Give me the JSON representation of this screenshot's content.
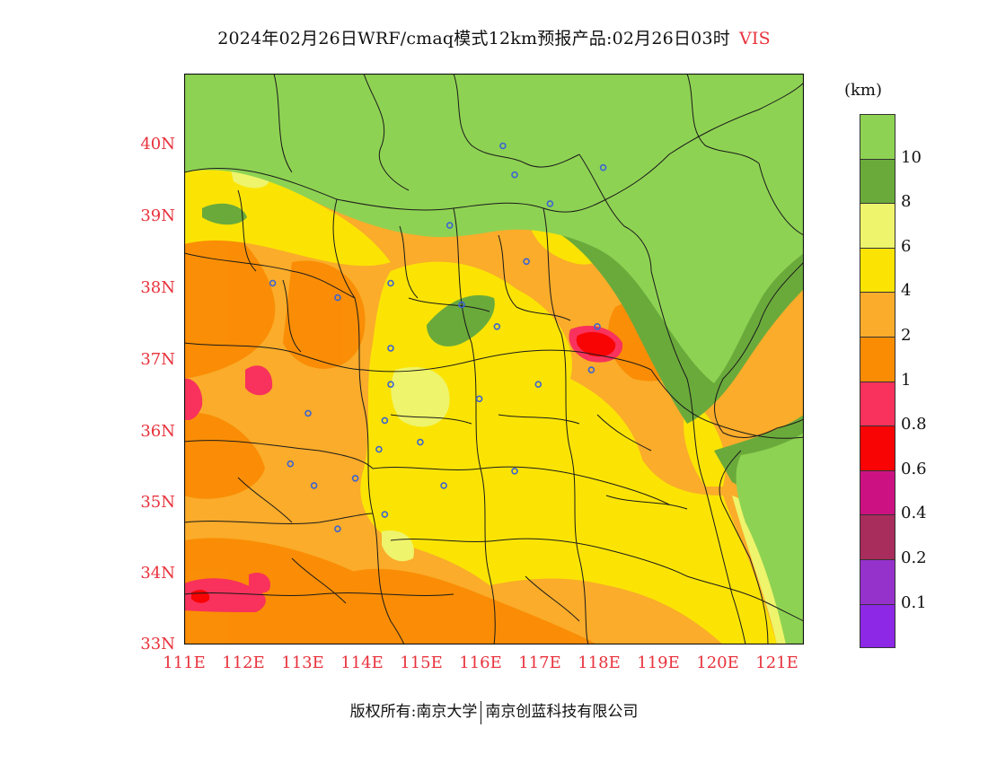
{
  "header": {
    "title": "2024年02月26日WRF/cmaq模式12km预报产品:02月26日03时",
    "variable": "VIS"
  },
  "map": {
    "lat_labels": [
      "40N",
      "39N",
      "38N",
      "37N",
      "36N",
      "35N",
      "34N",
      "33N"
    ],
    "lon_labels": [
      "111E",
      "112E",
      "113E",
      "114E",
      "115E",
      "116E",
      "117E",
      "118E",
      "119E",
      "120E",
      "121E"
    ],
    "lon_range": [
      111,
      121.5
    ],
    "lat_range": [
      33,
      40.9
    ],
    "colors": {
      "lt10": "#8ed253",
      "8_10": "#6aaa3b",
      "6_8": "#eef46b",
      "4_6": "#fbe404",
      "2_4": "#faac2a",
      "1_2": "#fa8c04",
      "0.8_1": "#f8325c",
      "0.6_0.8": "#f80404",
      "station": "#3c64d2",
      "border": "#1a1a1a"
    },
    "stations": [
      [
        116.4,
        39.9
      ],
      [
        116.6,
        39.5
      ],
      [
        118.1,
        39.6
      ],
      [
        117.2,
        39.1
      ],
      [
        115.5,
        38.8
      ],
      [
        116.8,
        38.3
      ],
      [
        114.5,
        38.0
      ],
      [
        112.5,
        38.0
      ],
      [
        113.6,
        37.8
      ],
      [
        115.7,
        37.7
      ],
      [
        116.3,
        37.4
      ],
      [
        118.0,
        37.4
      ],
      [
        114.5,
        37.1
      ],
      [
        117.0,
        36.6
      ],
      [
        117.9,
        36.8
      ],
      [
        114.5,
        36.6
      ],
      [
        116.0,
        36.4
      ],
      [
        113.1,
        36.2
      ],
      [
        114.4,
        36.1
      ],
      [
        115.0,
        35.8
      ],
      [
        114.3,
        35.7
      ],
      [
        112.8,
        35.5
      ],
      [
        116.6,
        35.4
      ],
      [
        113.9,
        35.3
      ],
      [
        113.2,
        35.2
      ],
      [
        115.4,
        35.2
      ],
      [
        114.4,
        34.8
      ],
      [
        113.6,
        34.6
      ]
    ]
  },
  "colorbar": {
    "unit": "(km)",
    "swatches": [
      "#8ed253",
      "#6aaa3b",
      "#eef46b",
      "#fbe404",
      "#faac2a",
      "#fa8c04",
      "#f8325c",
      "#f80404",
      "#cc1282",
      "#a82c5c",
      "#9632cc",
      "#8c28e6"
    ],
    "labels": [
      "10",
      "8",
      "6",
      "4",
      "2",
      "1",
      "0.8",
      "0.6",
      "0.4",
      "0.2",
      "0.1"
    ]
  },
  "footer": {
    "left": "版权所有:南京大学",
    "right": "南京创蓝科技有限公司"
  }
}
